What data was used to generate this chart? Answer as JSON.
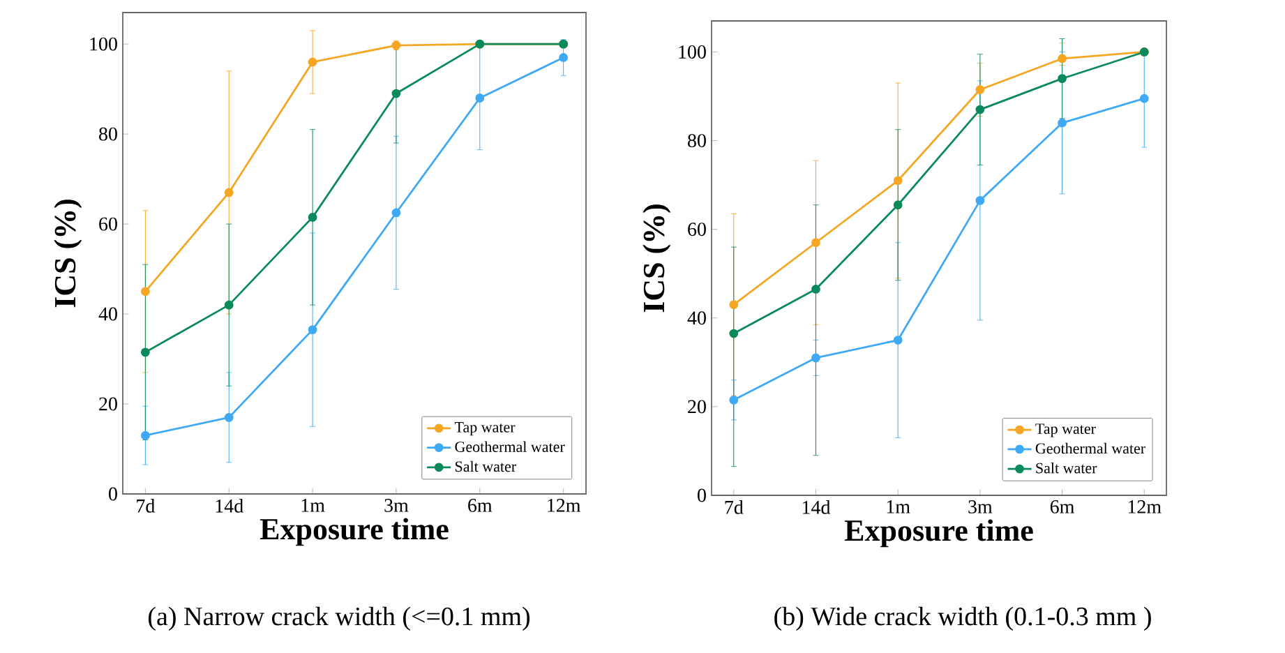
{
  "chart_data": [
    {
      "type": "line",
      "categories": [
        "7d",
        "14d",
        "1m",
        "3m",
        "6m",
        "12m"
      ],
      "xlabel": "Exposure time",
      "ylabel": "ICS (%)",
      "ylim": [
        0,
        107
      ],
      "yticks": [
        0,
        20,
        40,
        60,
        80,
        100
      ],
      "legend": "bottom right",
      "marker": "circle",
      "annotations": [
        "(a) Narrow crack width (<=0.1 mm)"
      ],
      "series": [
        {
          "name": "Tap water",
          "color": "#f5a623",
          "values": [
            45,
            67,
            96,
            99.7,
            100,
            100
          ],
          "errors": [
            18,
            27,
            7,
            1,
            null,
            null
          ]
        },
        {
          "name": "Geothermal water",
          "color": "#3fa9f5",
          "values": [
            13,
            17,
            36.5,
            62.5,
            88,
            97
          ],
          "errors": [
            6.5,
            10,
            21.5,
            17,
            11.5,
            4
          ]
        },
        {
          "name": "Salt water",
          "color": "#0a8a5a",
          "values": [
            31.5,
            42,
            61.5,
            89,
            100,
            100
          ],
          "errors": [
            19.5,
            18,
            19.5,
            11,
            null,
            null
          ]
        }
      ]
    },
    {
      "type": "line",
      "categories": [
        "7d",
        "14d",
        "1m",
        "3m",
        "6m",
        "12m"
      ],
      "xlabel": "Exposure time",
      "ylabel": "ICS (%)",
      "ylim": [
        0,
        107
      ],
      "yticks": [
        0,
        20,
        40,
        60,
        80,
        100
      ],
      "legend": "bottom right",
      "marker": "circle",
      "annotations": [
        "(b) Wide crack width (0.1-0.3 mm )"
      ],
      "series": [
        {
          "name": "Tap water",
          "color": "#f5a623",
          "values": [
            43,
            57,
            71,
            91.5,
            98.5,
            100
          ],
          "errors": [
            20.5,
            18.5,
            22,
            6,
            [
              97,
              102
            ],
            null
          ]
        },
        {
          "name": "Geothermal water",
          "color": "#3fa9f5",
          "values": [
            21.5,
            31,
            35,
            66.5,
            84,
            89.5
          ],
          "errors": [
            4.5,
            4,
            22,
            27,
            16,
            11
          ]
        },
        {
          "name": "Salt water",
          "color": "#0a8a5a",
          "values": [
            36.5,
            46.5,
            65.5,
            87,
            94,
            100
          ],
          "errors": [
            [
              6.5,
              56
            ],
            [
              9,
              65.5
            ],
            17,
            12.5,
            9,
            null
          ]
        }
      ]
    }
  ]
}
